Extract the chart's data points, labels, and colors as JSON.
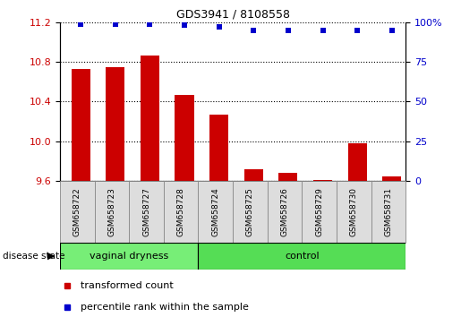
{
  "title": "GDS3941 / 8108558",
  "samples": [
    "GSM658722",
    "GSM658723",
    "GSM658727",
    "GSM658728",
    "GSM658724",
    "GSM658725",
    "GSM658726",
    "GSM658729",
    "GSM658730",
    "GSM658731"
  ],
  "bar_values": [
    10.73,
    10.75,
    10.86,
    10.47,
    10.27,
    9.72,
    9.68,
    9.61,
    9.98,
    9.64
  ],
  "dot_values": [
    99,
    99,
    99,
    98,
    97,
    95,
    95,
    95,
    95,
    95
  ],
  "bar_color": "#cc0000",
  "dot_color": "#0000cc",
  "ylim_left": [
    9.6,
    11.2
  ],
  "ylim_right": [
    0,
    100
  ],
  "yticks_left": [
    9.6,
    10.0,
    10.4,
    10.8,
    11.2
  ],
  "yticks_right": [
    0,
    25,
    50,
    75,
    100
  ],
  "group1_label": "vaginal dryness",
  "group2_label": "control",
  "group1_count": 4,
  "group2_count": 6,
  "disease_label": "disease state",
  "legend_bar": "transformed count",
  "legend_dot": "percentile rank within the sample",
  "group1_color": "#77ee77",
  "group2_color": "#55dd55",
  "tick_label_color_left": "#cc0000",
  "tick_label_color_right": "#0000cc",
  "grid_color": "#000000",
  "bar_bottom": 9.6,
  "xlim": [
    -0.6,
    9.4
  ]
}
